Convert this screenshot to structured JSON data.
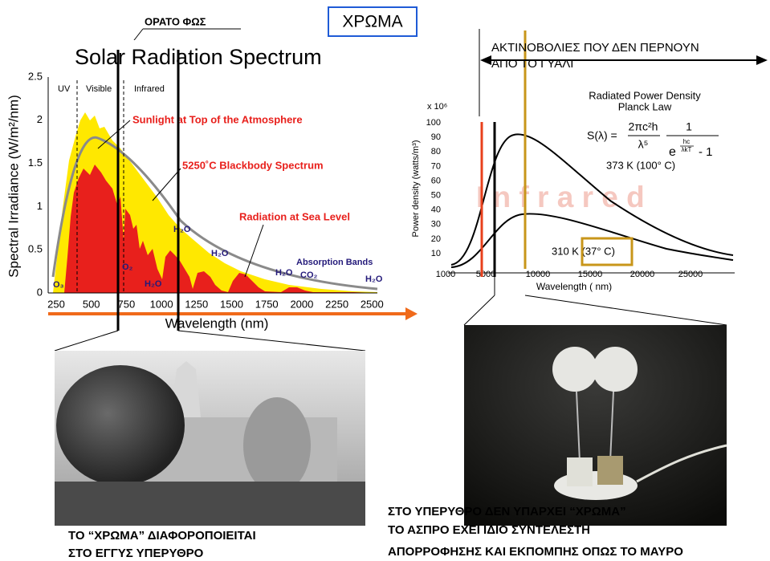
{
  "header": {
    "visible_light": "ΟΡΑΤΟ ΦΩΣ",
    "color_box": "ΧΡΩΜΑ",
    "glass_note": [
      "ΑΚΤΙΝΟΒΟΛΙΕΣ ΠΟΥ ΔΕΝ ΠΕΡΝΟΥΝ",
      "ΑΠΟ ΤΟ ΓΥΑΛΙ"
    ]
  },
  "solar_chart": {
    "title": "Solar Radiation Spectrum",
    "y_axis_label": "Spectral Irradiance (W/m²/nm)",
    "x_axis_label": "Wavelength (nm)",
    "yticks": [
      "0",
      "0.5",
      "1",
      "1.5",
      "2",
      "2.5"
    ],
    "xticks": [
      "250",
      "500",
      "750",
      "1000",
      "1250",
      "1500",
      "1750",
      "2000",
      "2250",
      "2500"
    ],
    "regions": [
      "UV",
      "Visible",
      "Infrared"
    ],
    "annotations": [
      "Sunlight at Top of the Atmosphere",
      "5250˚C Blackbody Spectrum",
      "Radiation at Sea Level",
      "Absorption Bands"
    ],
    "molecules": [
      "O₃",
      "O₂",
      "H₂O",
      "H₂O",
      "H₂O",
      "H₂O",
      "CO₂",
      "H₂O"
    ]
  },
  "planck_chart": {
    "title": [
      "Radiated Power Density",
      "Planck Law"
    ],
    "multiplier": "x 10⁶",
    "y_axis_label": "Power density (watts/m³)",
    "x_axis_label": "Wavelength ( nm)",
    "yticks": [
      "10",
      "20",
      "30",
      "40",
      "50",
      "60",
      "70",
      "80",
      "90",
      "100"
    ],
    "xticks": [
      "1000",
      "5000",
      "10000",
      "15000",
      "20000",
      "25000"
    ],
    "formula": {
      "lhs": "S(λ) =",
      "num1": "2πc²h",
      "den1": "λ⁵",
      "num2": "1",
      "den2": "e",
      "exp_num": "hc",
      "exp_den": "λkT",
      "tail": "- 1"
    },
    "watermark": "I n f r a r e d",
    "curve_labels": [
      "373 K (100° C)",
      "310 K (37° C)"
    ]
  },
  "captions": {
    "left": [
      "ΤΟ “ΧΡΩΜΑ” ΔΙΑΦΟΡΟΠΟΙΕΙΤΑΙ",
      "ΣΤΟ ΕΓΓΥΣ ΥΠΕΡΥΘΡΟ"
    ],
    "right": [
      "ΣΤΟ ΥΠΕΡΥΘΡΟ ΔΕΝ ΥΠΑΡΧΕΙ “ΧΡΩΜΑ”",
      "ΤΟ ΑΣΠΡΟ ΕΧΕΙ ΙΔΙΟ ΣΥΝΤΕΛΕΣΤΗ",
      "ΑΠΟΡΡΟΦΗΣΗΣ ΚΑΙ ΕΚΠΟΜΠΗΣ ΟΠΩΣ ΤΟ ΜΑΥΡΟ"
    ]
  }
}
